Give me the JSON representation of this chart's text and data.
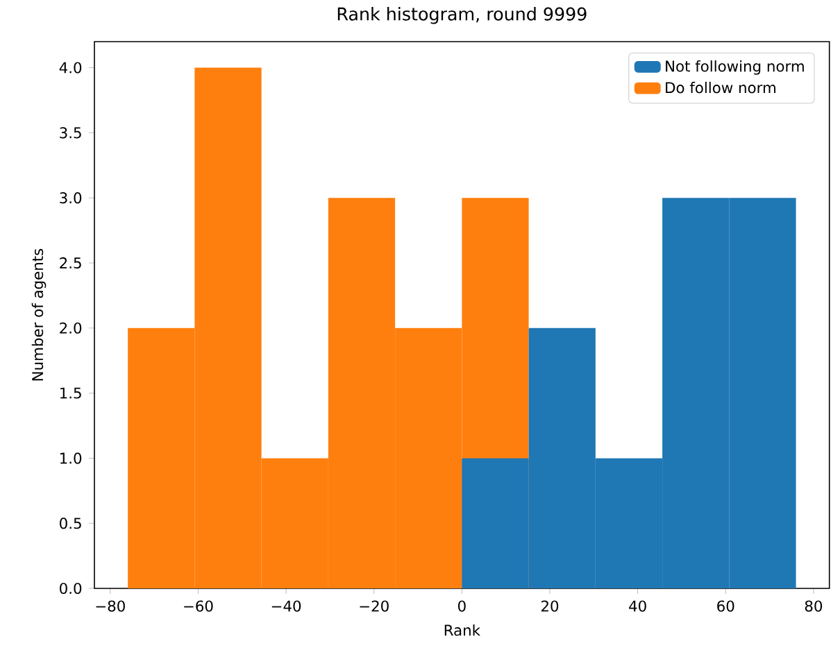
{
  "chart_data": {
    "type": "histogram",
    "title": "Rank histogram, round 9999",
    "xlabel": "Rank",
    "ylabel": "Number of agents",
    "bins": [
      -76,
      -60.8,
      -45.6,
      -30.4,
      -15.2,
      0,
      15.2,
      30.4,
      45.6,
      60.8,
      76
    ],
    "series": [
      {
        "name": "Not following norm",
        "color": "#1f77b4",
        "values": [
          null,
          null,
          null,
          null,
          null,
          1,
          2,
          1,
          3,
          3
        ]
      },
      {
        "name": "Do follow norm",
        "color": "#ff7f0e",
        "values": [
          2,
          4,
          1,
          3,
          2,
          3,
          null,
          null,
          null,
          null
        ]
      }
    ],
    "xlim": [
      -83.6,
      83.6
    ],
    "ylim": [
      0,
      4.2
    ],
    "xticks": [
      {
        "value": -80,
        "label": "−80"
      },
      {
        "value": -60,
        "label": "−60"
      },
      {
        "value": -40,
        "label": "−40"
      },
      {
        "value": -20,
        "label": "−20"
      },
      {
        "value": 0,
        "label": "0"
      },
      {
        "value": 20,
        "label": "20"
      },
      {
        "value": 40,
        "label": "40"
      },
      {
        "value": 60,
        "label": "60"
      },
      {
        "value": 80,
        "label": "80"
      }
    ],
    "yticks": [
      {
        "value": 0,
        "label": "0.0"
      },
      {
        "value": 0.5,
        "label": "0.5"
      },
      {
        "value": 1,
        "label": "1.0"
      },
      {
        "value": 1.5,
        "label": "1.5"
      },
      {
        "value": 2,
        "label": "2.0"
      },
      {
        "value": 2.5,
        "label": "2.5"
      },
      {
        "value": 3,
        "label": "3.0"
      },
      {
        "value": 3.5,
        "label": "3.5"
      },
      {
        "value": 4,
        "label": "4.0"
      }
    ],
    "legend": "top right"
  }
}
